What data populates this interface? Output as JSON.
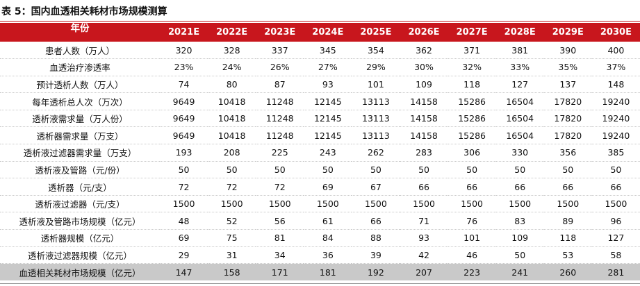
{
  "title": "表 5：国内血透相关耗材市场规模测算",
  "header": {
    "label": "年份",
    "years": [
      "2021E",
      "2022E",
      "2023E",
      "2024E",
      "2025E",
      "2026E",
      "2027E",
      "2028E",
      "2029E",
      "2030E"
    ]
  },
  "rows": [
    {
      "label": "患者人数（万人）",
      "values": [
        "320",
        "328",
        "337",
        "345",
        "354",
        "362",
        "371",
        "381",
        "390",
        "400"
      ]
    },
    {
      "label": "血透治疗渗透率",
      "values": [
        "23%",
        "24%",
        "26%",
        "27%",
        "29%",
        "30%",
        "32%",
        "33%",
        "35%",
        "37%"
      ]
    },
    {
      "label": "预计透析人数（万人）",
      "values": [
        "74",
        "80",
        "87",
        "93",
        "101",
        "109",
        "118",
        "127",
        "137",
        "148"
      ]
    },
    {
      "label": "每年透析总人次（万次）",
      "values": [
        "9649",
        "10418",
        "11248",
        "12145",
        "13113",
        "14158",
        "15286",
        "16504",
        "17820",
        "19240"
      ]
    },
    {
      "label": "透析液需求量（万人份）",
      "values": [
        "9649",
        "10418",
        "11248",
        "12145",
        "13113",
        "14158",
        "15286",
        "16504",
        "17820",
        "19240"
      ]
    },
    {
      "label": "透析器需求量（万支）",
      "values": [
        "9649",
        "10418",
        "11248",
        "12145",
        "13113",
        "14158",
        "15286",
        "16504",
        "17820",
        "19240"
      ]
    },
    {
      "label": "透析液过滤器需求量（万支）",
      "values": [
        "193",
        "208",
        "225",
        "243",
        "262",
        "283",
        "306",
        "330",
        "356",
        "385"
      ]
    },
    {
      "label": "透析液及管路（元/份）",
      "values": [
        "50",
        "50",
        "50",
        "50",
        "50",
        "50",
        "50",
        "50",
        "50",
        "50"
      ]
    },
    {
      "label": "透析器（元/支）",
      "values": [
        "72",
        "72",
        "72",
        "69",
        "67",
        "66",
        "66",
        "66",
        "66",
        "66"
      ]
    },
    {
      "label": "透析液过滤器（元/支）",
      "values": [
        "1500",
        "1500",
        "1500",
        "1500",
        "1500",
        "1500",
        "1500",
        "1500",
        "1500",
        "1500"
      ]
    },
    {
      "label": "透析液及管路市场规模（亿元）",
      "values": [
        "48",
        "52",
        "56",
        "61",
        "66",
        "71",
        "76",
        "83",
        "89",
        "96"
      ]
    },
    {
      "label": "透析器规模（亿元）",
      "values": [
        "69",
        "75",
        "81",
        "84",
        "88",
        "93",
        "101",
        "109",
        "118",
        "127"
      ]
    },
    {
      "label": "透析液过滤器规模（亿元）",
      "values": [
        "29",
        "31",
        "34",
        "36",
        "39",
        "42",
        "46",
        "50",
        "53",
        "58"
      ]
    }
  ],
  "total": {
    "label": "血透相关耗材市场规模（亿元）",
    "values": [
      "147",
      "158",
      "171",
      "181",
      "192",
      "207",
      "223",
      "241",
      "260",
      "281"
    ]
  },
  "colors": {
    "header_bg": "#c8161d",
    "total_bg": "#c9c9c9"
  }
}
